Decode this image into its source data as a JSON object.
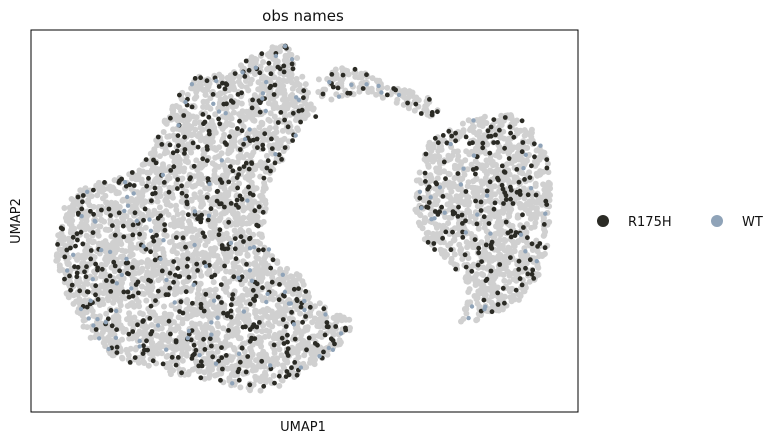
{
  "chart_data": {
    "type": "scatter",
    "title": "obs names",
    "xlabel": "UMAP1",
    "ylabel": "UMAP2",
    "grid": false,
    "ticks": false,
    "legend_placement": "right",
    "background_color": "#d0d0d0",
    "series": [
      {
        "name": "R175H",
        "color": "#2b2b25"
      },
      {
        "name": "WT",
        "color": "#8fa3b8"
      }
    ]
  }
}
